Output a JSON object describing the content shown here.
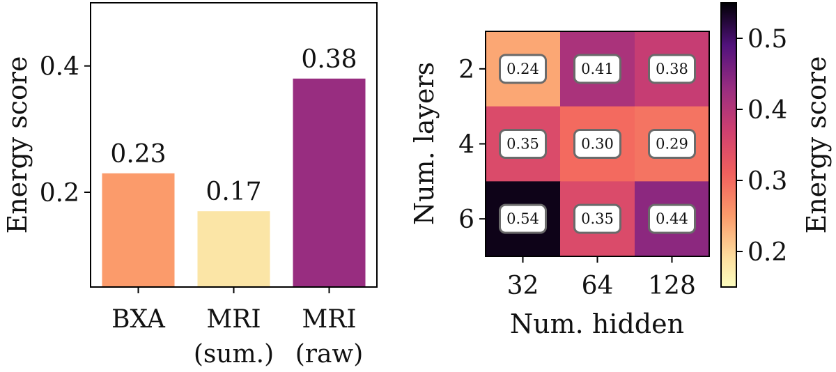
{
  "chart_data": [
    {
      "type": "bar",
      "categories": [
        {
          "line1": "BXA",
          "line2": ""
        },
        {
          "line1": "MRI",
          "line2": "(sum.)"
        },
        {
          "line1": "MRI",
          "line2": "(raw)"
        }
      ],
      "values": [
        0.23,
        0.17,
        0.38
      ],
      "value_labels": [
        "0.23",
        "0.17",
        "0.38"
      ],
      "colors": [
        "#fb9b6b",
        "#fbe5a6",
        "#982d80"
      ],
      "ylabel": "Energy score",
      "xlabel": "",
      "ylim": [
        0.05,
        0.5
      ],
      "yticks": [
        0.2,
        0.4
      ],
      "ytick_labels": [
        "0.2",
        "0.4"
      ],
      "grid": false
    },
    {
      "type": "heatmap",
      "xlabel": "Num. hidden",
      "ylabel": "Num. layers",
      "x_categories": [
        "32",
        "64",
        "128"
      ],
      "y_categories": [
        "2",
        "4",
        "6"
      ],
      "values": [
        [
          0.24,
          0.41,
          0.38
        ],
        [
          0.35,
          0.3,
          0.29
        ],
        [
          0.54,
          0.35,
          0.44
        ]
      ],
      "value_labels": [
        [
          "0.24",
          "0.41",
          "0.38"
        ],
        [
          "0.35",
          "0.30",
          "0.29"
        ],
        [
          "0.54",
          "0.35",
          "0.44"
        ]
      ],
      "colormap": "magma_r",
      "colorbar": {
        "label": "Energy score",
        "range": [
          0.15,
          0.55
        ],
        "ticks": [
          0.2,
          0.3,
          0.4,
          0.5
        ],
        "tick_labels": [
          "0.2",
          "0.3",
          "0.4",
          "0.5"
        ]
      }
    }
  ]
}
